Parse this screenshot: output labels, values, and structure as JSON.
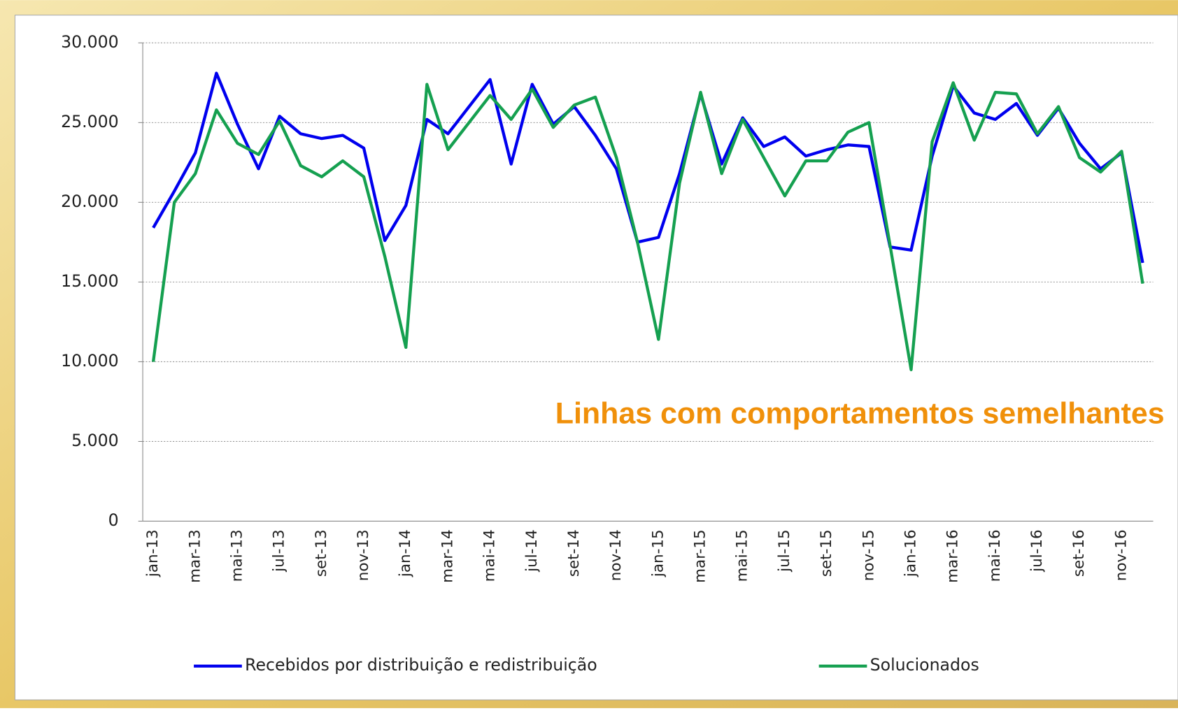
{
  "chart_data": {
    "type": "line",
    "annotation": "Linhas com comportamentos semelhantes",
    "categories": [
      "jan-13",
      null,
      "mar-13",
      null,
      "mai-13",
      null,
      "jul-13",
      null,
      "set-13",
      null,
      "nov-13",
      null,
      "jan-14",
      null,
      "mar-14",
      null,
      "mai-14",
      null,
      "jul-14",
      null,
      "set-14",
      null,
      "nov-14",
      null,
      "jan-15",
      null,
      "mar-15",
      null,
      "mai-15",
      null,
      "jul-15",
      null,
      "set-15",
      null,
      "nov-15",
      null,
      "jan-16",
      null,
      "mar-16",
      null,
      "mai-16",
      null,
      "jul-16",
      null,
      "set-16",
      null,
      "nov-16",
      null
    ],
    "series": [
      {
        "name": "Recebidos por distribuição e redistribuição",
        "color": "#0000ee",
        "values": [
          18400,
          20700,
          23100,
          28100,
          24900,
          22100,
          25400,
          24300,
          24000,
          24200,
          23400,
          17600,
          19800,
          25200,
          24300,
          26000,
          27700,
          22400,
          27400,
          24900,
          26000,
          24200,
          22100,
          17500,
          17800,
          21800,
          26800,
          22400,
          25300,
          23500,
          24100,
          22900,
          23300,
          23600,
          23500,
          17200,
          17000,
          22900,
          27300,
          25600,
          25200,
          26200,
          24200,
          25900,
          23700,
          22100,
          23100,
          16200
        ]
      },
      {
        "name": "Solucionados",
        "color": "#15a050",
        "values": [
          10000,
          20000,
          21800,
          25800,
          23700,
          23000,
          25100,
          22300,
          21600,
          22600,
          21600,
          16600,
          10900,
          27400,
          23300,
          25000,
          26700,
          25200,
          27100,
          24700,
          26100,
          26600,
          22800,
          17500,
          11400,
          21200,
          26900,
          21800,
          25200,
          22800,
          20400,
          22600,
          22600,
          24400,
          25000,
          17300,
          9500,
          23800,
          27500,
          23900,
          26900,
          26800,
          24300,
          26000,
          22800,
          21900,
          23200,
          14900
        ]
      }
    ],
    "ylim": [
      0,
      30000
    ],
    "yticks": [
      0,
      {
        "value": 5000,
        "label": "5.000"
      },
      {
        "value": 10000,
        "label": "10.000"
      },
      {
        "value": 15000,
        "label": "15.000"
      },
      {
        "value": 20000,
        "label": "20.000"
      },
      {
        "value": 25000,
        "label": "25.000"
      },
      {
        "value": 30000,
        "label": "30.000"
      }
    ],
    "grid": true
  }
}
